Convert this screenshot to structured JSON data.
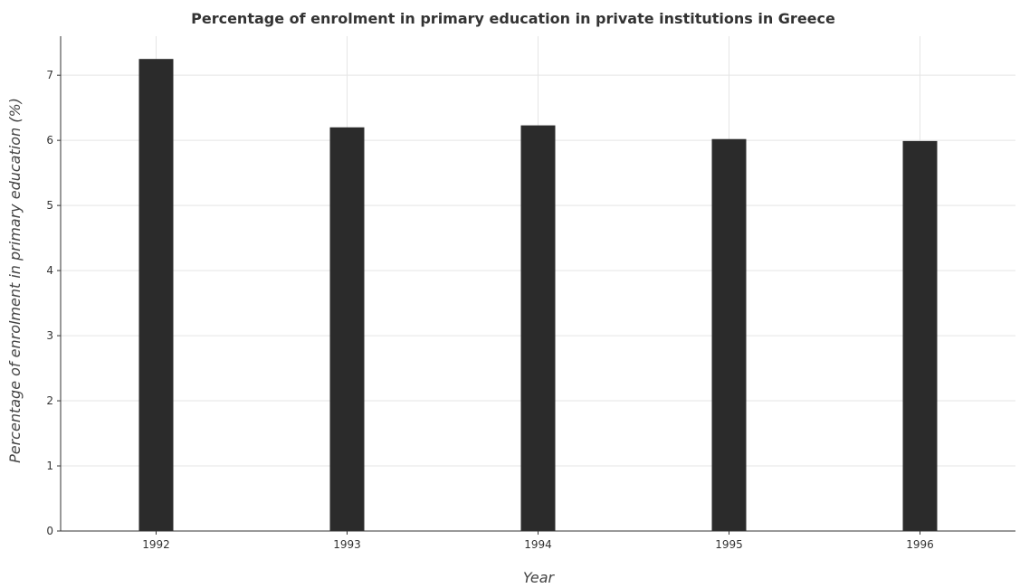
{
  "chart_data": {
    "type": "bar",
    "title": "Percentage of enrolment in primary education in private institutions in Greece",
    "xlabel": "Year",
    "ylabel": "Percentage of enrolment in primary education (%)",
    "categories": [
      "1992",
      "1993",
      "1994",
      "1995",
      "1996"
    ],
    "values": [
      7.25,
      6.2,
      6.23,
      6.02,
      5.99
    ],
    "ylim": [
      0,
      7.6
    ],
    "yticks": [
      0,
      1,
      2,
      3,
      4,
      5,
      6,
      7
    ],
    "grid": true,
    "bar_color": "#2b2b2b"
  }
}
